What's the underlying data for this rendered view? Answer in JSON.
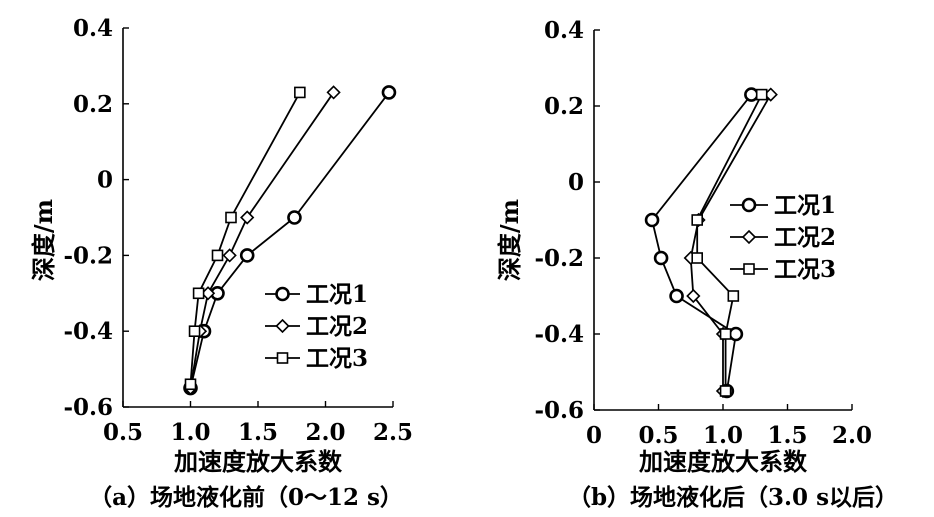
{
  "chart_data": [
    {
      "type": "line",
      "caption": "（a）场地液化前（0～12 s）",
      "xlabel": "加速度放大系数",
      "ylabel": "深度/m",
      "xlim": [
        0.5,
        2.5
      ],
      "ylim": [
        -0.6,
        0.4
      ],
      "xticks": [
        "0.5",
        "1.0",
        "1.5",
        "2.0",
        "2.5"
      ],
      "yticks": [
        "-0.6",
        "-0.4",
        "-0.2",
        "0",
        "0.2",
        "0.4"
      ],
      "legend_position": "lower-right",
      "series": [
        {
          "name": "工况1",
          "marker": "circle",
          "points": [
            [
              2.47,
              0.23
            ],
            [
              1.77,
              -0.1
            ],
            [
              1.42,
              -0.2
            ],
            [
              1.2,
              -0.3
            ],
            [
              1.1,
              -0.4
            ],
            [
              1.0,
              -0.55
            ]
          ]
        },
        {
          "name": "工况2",
          "marker": "diamond",
          "points": [
            [
              2.06,
              0.23
            ],
            [
              1.42,
              -0.1
            ],
            [
              1.29,
              -0.2
            ],
            [
              1.13,
              -0.3
            ],
            [
              1.07,
              -0.4
            ],
            [
              1.0,
              -0.55
            ]
          ]
        },
        {
          "name": "工况3",
          "marker": "square",
          "points": [
            [
              1.81,
              0.23
            ],
            [
              1.3,
              -0.1
            ],
            [
              1.2,
              -0.2
            ],
            [
              1.06,
              -0.3
            ],
            [
              1.03,
              -0.4
            ],
            [
              1.0,
              -0.54
            ]
          ]
        }
      ]
    },
    {
      "type": "line",
      "caption": "（b）场地液化后（3.0 s以后）",
      "xlabel": "加速度放大系数",
      "ylabel": "深度/m",
      "xlim": [
        0,
        2.0
      ],
      "ylim": [
        -0.6,
        0.4
      ],
      "xticks": [
        "0",
        "0.5",
        "1.0",
        "1.5",
        "2.0"
      ],
      "yticks": [
        "-0.6",
        "-0.4",
        "-0.2",
        "0",
        "0.2",
        "0.4"
      ],
      "legend_position": "upper-right",
      "series": [
        {
          "name": "工况1",
          "marker": "circle",
          "points": [
            [
              1.22,
              0.23
            ],
            [
              0.45,
              -0.1
            ],
            [
              0.52,
              -0.2
            ],
            [
              0.64,
              -0.3
            ],
            [
              1.1,
              -0.4
            ],
            [
              1.03,
              -0.55
            ]
          ]
        },
        {
          "name": "工况2",
          "marker": "diamond",
          "points": [
            [
              1.37,
              0.23
            ],
            [
              0.81,
              -0.1
            ],
            [
              0.75,
              -0.2
            ],
            [
              0.77,
              -0.3
            ],
            [
              1.0,
              -0.4
            ],
            [
              1.0,
              -0.55
            ]
          ]
        },
        {
          "name": "工况3",
          "marker": "square",
          "points": [
            [
              1.3,
              0.23
            ],
            [
              0.8,
              -0.1
            ],
            [
              0.8,
              -0.2
            ],
            [
              1.08,
              -0.3
            ],
            [
              1.02,
              -0.4
            ],
            [
              1.02,
              -0.55
            ]
          ]
        }
      ]
    }
  ]
}
